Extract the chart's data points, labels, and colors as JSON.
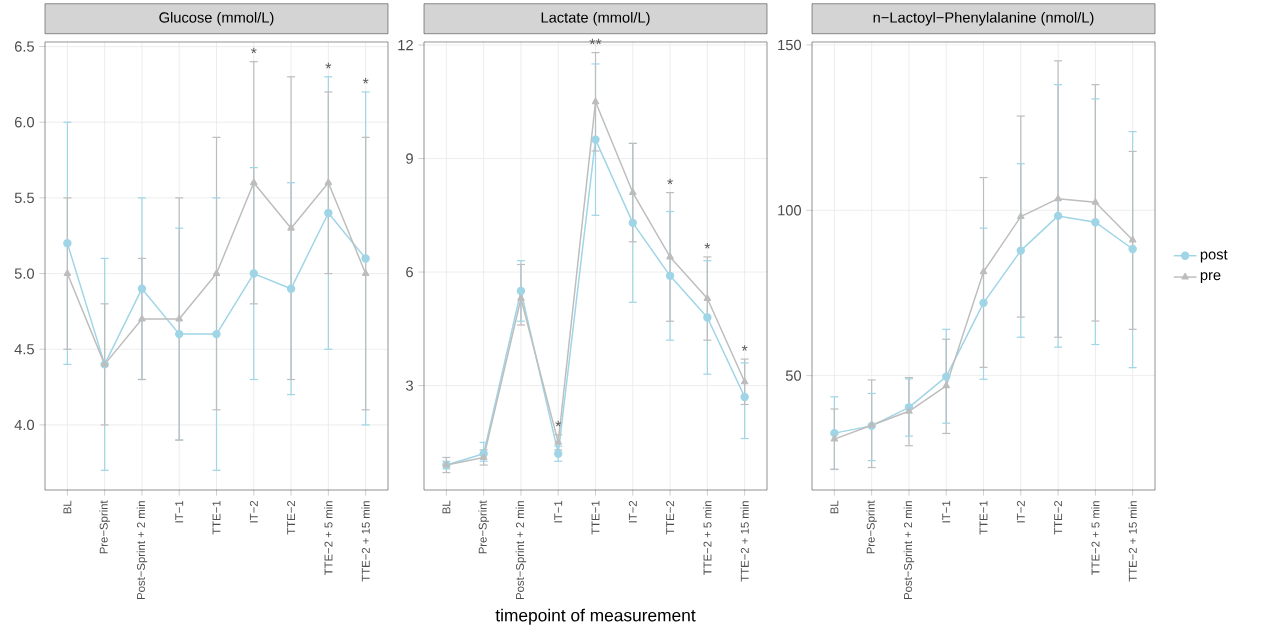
{
  "chart_data": [
    {
      "type": "line",
      "title": "Glucose (mmol/L)",
      "categories": [
        "BL",
        "Pre−Sprint",
        "Post−Sprint + 2 min",
        "IT−1",
        "TTE−1",
        "IT−2",
        "TTE−2",
        "TTE−2 + 5 min",
        "TTE−2 + 15 min"
      ],
      "series": [
        {
          "color": "#9fd5e6",
          "marker": "circle",
          "values": [
            5.2,
            4.4,
            4.9,
            4.6,
            4.6,
            5.0,
            4.9,
            5.4,
            5.1
          ],
          "errors": [
            [
              4.4,
              6.0
            ],
            [
              3.7,
              5.1
            ],
            [
              4.3,
              5.5
            ],
            [
              3.9,
              5.3
            ],
            [
              3.7,
              5.5
            ],
            [
              4.3,
              5.7
            ],
            [
              4.2,
              5.6
            ],
            [
              4.5,
              6.3
            ],
            [
              4.0,
              6.2
            ]
          ]
        },
        {
          "color": "#bdbdbd",
          "marker": "triangle",
          "values": [
            5.0,
            4.4,
            4.7,
            4.7,
            5.0,
            5.6,
            5.3,
            5.6,
            5.0
          ],
          "errors": [
            [
              4.5,
              5.5
            ],
            [
              4.0,
              4.8
            ],
            [
              4.3,
              5.1
            ],
            [
              3.9,
              5.5
            ],
            [
              4.1,
              5.9
            ],
            [
              4.8,
              6.4
            ],
            [
              4.3,
              6.3
            ],
            [
              5.0,
              6.2
            ],
            [
              4.1,
              5.9
            ]
          ]
        }
      ],
      "ylim": [
        3.57,
        6.53
      ],
      "yticks": [
        {
          "value": 4,
          "label": "4.0"
        },
        {
          "value": 4.5,
          "label": "4.5"
        },
        {
          "value": 5,
          "label": "5.0"
        },
        {
          "value": 5.5,
          "label": "5.5"
        },
        {
          "value": 6,
          "label": "6.0"
        },
        {
          "value": 6.5,
          "label": "6.5"
        }
      ],
      "grid": true,
      "annotations": [
        {
          "text": "*",
          "x": "IT−2",
          "y": 6.4
        },
        {
          "text": "*",
          "x": "TTE−2 + 5 min",
          "y": 6.3
        },
        {
          "text": "*",
          "x": "TTE−2 + 15 min",
          "y": 6.2
        }
      ]
    },
    {
      "type": "line",
      "title": "Lactate (mmol/L)",
      "xlabel": "timepoint of measurement",
      "categories": [
        "BL",
        "Pre−Sprint",
        "Post−Sprint + 2 min",
        "IT−1",
        "TTE−1",
        "IT−2",
        "TTE−2",
        "TTE−2 + 5 min",
        "TTE−2 + 15 min"
      ],
      "series": [
        {
          "color": "#9fd5e6",
          "marker": "circle",
          "values": [
            0.9,
            1.2,
            5.5,
            1.2,
            9.5,
            7.3,
            5.9,
            4.8,
            2.7
          ],
          "errors": [
            [
              0.8,
              1.0
            ],
            [
              1.0,
              1.5
            ],
            [
              4.7,
              6.3
            ],
            [
              1.0,
              1.4
            ],
            [
              7.5,
              11.5
            ],
            [
              5.2,
              9.4
            ],
            [
              4.2,
              7.6
            ],
            [
              3.3,
              6.3
            ],
            [
              1.6,
              3.6
            ]
          ]
        },
        {
          "color": "#bdbdbd",
          "marker": "triangle",
          "values": [
            0.9,
            1.1,
            5.3,
            1.5,
            10.5,
            8.1,
            6.4,
            5.3,
            3.1
          ],
          "errors": [
            [
              0.7,
              1.1
            ],
            [
              0.9,
              1.3
            ],
            [
              4.6,
              6.2
            ],
            [
              1.3,
              1.7
            ],
            [
              9.2,
              11.8
            ],
            [
              6.8,
              9.4
            ],
            [
              4.7,
              8.1
            ],
            [
              4.2,
              6.4
            ],
            [
              2.5,
              3.7
            ]
          ]
        }
      ],
      "ylim": [
        0.24,
        12.08
      ],
      "yticks": [
        3,
        6,
        9,
        12
      ],
      "grid": true,
      "annotations": [
        {
          "text": "*",
          "x": "IT−1",
          "y": 1.7
        },
        {
          "text": "**",
          "x": "TTE−1",
          "y": 11.8
        },
        {
          "text": "*",
          "x": "TTE−2",
          "y": 8.1
        },
        {
          "text": "*",
          "x": "TTE−2 + 5 min",
          "y": 6.4
        },
        {
          "text": "*",
          "x": "TTE−2 + 15 min",
          "y": 3.7
        }
      ]
    },
    {
      "type": "line",
      "title": "n−Lactoyl−Phenylalanine (nmol/L)",
      "categories": [
        "BL",
        "Pre−Sprint",
        "Post−Sprint + 2 min",
        "IT−1",
        "TTE−1",
        "IT−2",
        "TTE−2",
        "TTE−2 + 5 min",
        "TTE−2 + 15 min"
      ],
      "series": [
        {
          "name": "post",
          "color": "#9fd5e6",
          "marker": "circle",
          "values": [
            32.6,
            34.8,
            40.4,
            49.7,
            72,
            87.8,
            98.3,
            96.4,
            88.3
          ],
          "errors": [
            [
              21.6,
              43.6
            ],
            [
              24.3,
              44.6
            ],
            [
              31.7,
              49
            ],
            [
              35.6,
              64
            ],
            [
              48.9,
              94.6
            ],
            [
              61.6,
              114.1
            ],
            [
              58.6,
              138
            ],
            [
              59.4,
              133.7
            ],
            [
              52.4,
              123.8
            ]
          ]
        },
        {
          "name": "pre",
          "color": "#bdbdbd",
          "marker": "triangle",
          "values": [
            30.8,
            35,
            39.2,
            46.9,
            81.4,
            98.1,
            103.5,
            102.4,
            91
          ],
          "errors": [
            [
              21.7,
              39.9
            ],
            [
              22.2,
              48.7
            ],
            [
              28.8,
              49.4
            ],
            [
              32.5,
              61
            ],
            [
              52.5,
              109.9
            ],
            [
              67.7,
              128.5
            ],
            [
              61.6,
              145.2
            ],
            [
              66.5,
              138
            ],
            [
              64,
              117.8
            ]
          ]
        }
      ],
      "ylim": [
        15.4,
        150.9
      ],
      "yticks": [
        50,
        100,
        150
      ],
      "grid": true,
      "legend": "right"
    }
  ]
}
